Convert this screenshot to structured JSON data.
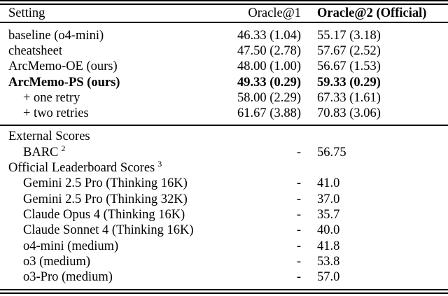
{
  "table": {
    "columns": [
      "Setting",
      "Oracle@1",
      "Oracle@2 (Official)"
    ],
    "body1": [
      {
        "setting": "baseline (o4-mini)",
        "oracle1": "46.33 (1.04)",
        "oracle2": "55.17 (3.18)"
      },
      {
        "setting": "cheatsheet",
        "oracle1": "47.50 (2.78)",
        "oracle2": "57.67 (2.52)"
      },
      {
        "setting": "ArcMemo-OE (ours)",
        "oracle1": "48.00 (1.00)",
        "oracle2": "56.67 (1.53)"
      },
      {
        "setting": "ArcMemo-PS (ours)",
        "oracle1": "49.33 (0.29)",
        "oracle2": "59.33 (0.29)"
      },
      {
        "setting": "+ one retry",
        "oracle1": "58.00 (2.29)",
        "oracle2": "67.33 (1.61)"
      },
      {
        "setting": "+ two retries",
        "oracle1": "61.67 (3.88)",
        "oracle2": "70.83 (3.06)"
      }
    ],
    "body2": [
      {
        "setting": "External Scores",
        "oracle1": "",
        "oracle2": ""
      },
      {
        "setting": "BARC",
        "sup": "2",
        "oracle1": "-",
        "oracle2": "56.75"
      },
      {
        "setting": "Official Leaderboard Scores",
        "sup": "3",
        "oracle1": "",
        "oracle2": ""
      },
      {
        "setting": "Gemini 2.5 Pro (Thinking 16K)",
        "oracle1": "-",
        "oracle2": "41.0"
      },
      {
        "setting": "Gemini 2.5 Pro (Thinking 32K)",
        "oracle1": "-",
        "oracle2": "37.0"
      },
      {
        "setting": "Claude Opus 4 (Thinking 16K)",
        "oracle1": "-",
        "oracle2": "35.7"
      },
      {
        "setting": "Claude Sonnet 4 (Thinking 16K)",
        "oracle1": "-",
        "oracle2": "40.0"
      },
      {
        "setting": "o4-mini (medium)",
        "oracle1": "-",
        "oracle2": "41.8"
      },
      {
        "setting": "o3 (medium)",
        "oracle1": "-",
        "oracle2": "53.8"
      },
      {
        "setting": "o3-Pro (medium)",
        "oracle1": "-",
        "oracle2": "57.0"
      }
    ]
  }
}
